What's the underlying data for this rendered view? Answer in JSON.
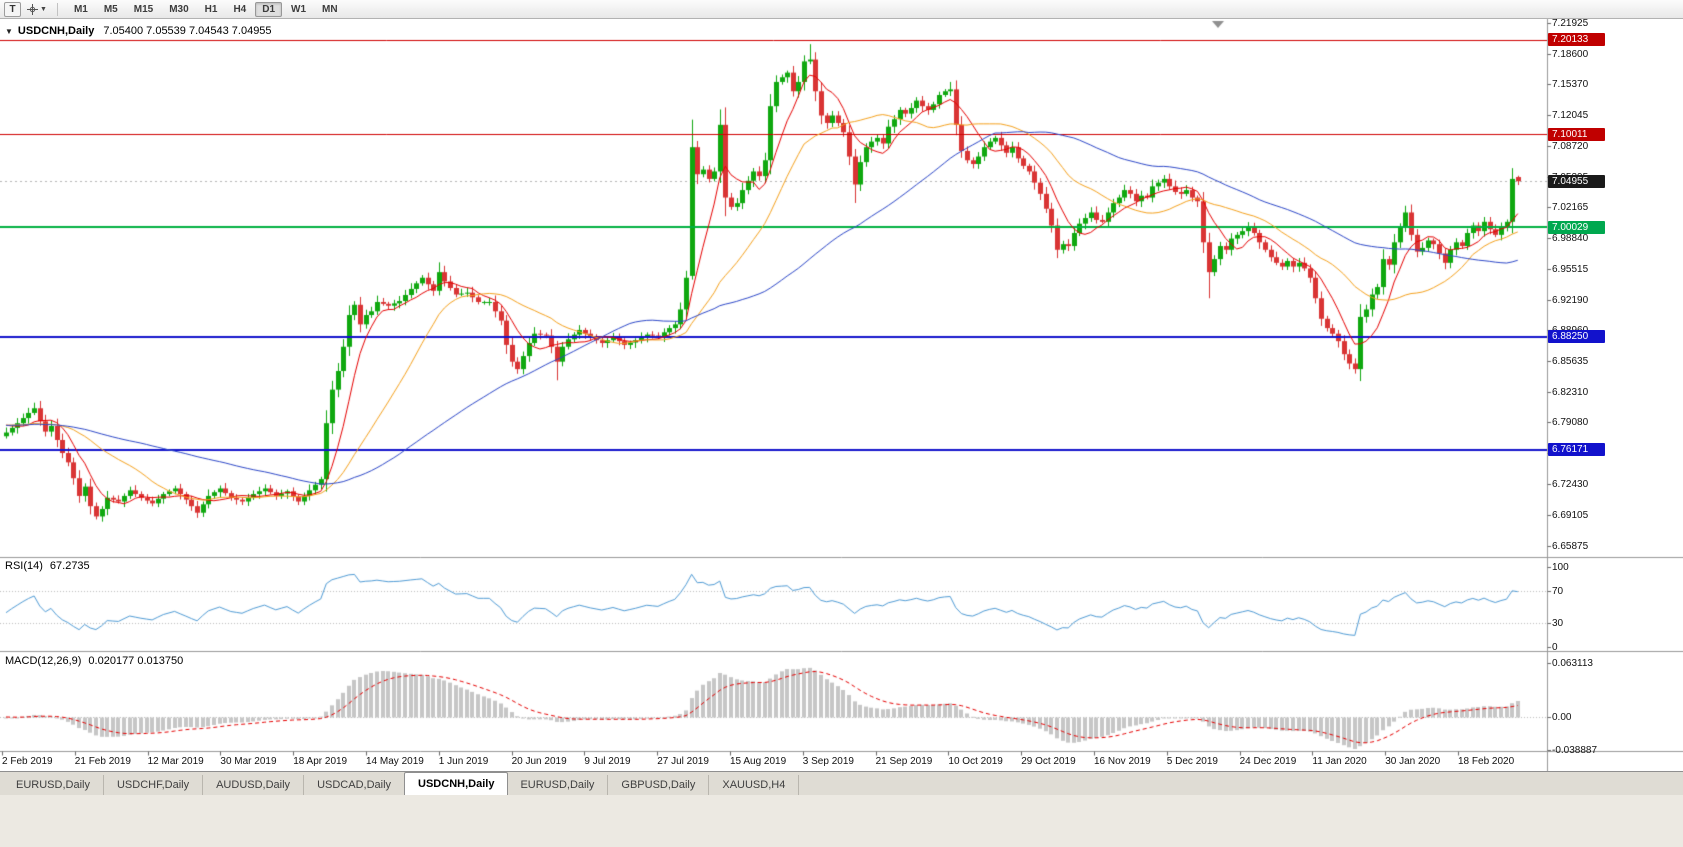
{
  "toolbar": {
    "template_button": "T",
    "timeframes": [
      "M1",
      "M5",
      "M15",
      "M30",
      "H1",
      "H4",
      "D1",
      "W1",
      "MN"
    ],
    "active_timeframe": "D1"
  },
  "chart_header": {
    "symbol": "USDCNH,Daily",
    "ohlc": "7.05400 7.05539 7.04543 7.04955"
  },
  "indicators": {
    "rsi": {
      "label": "RSI(14)",
      "value": "67.2735",
      "axis": [
        "100",
        "70",
        "30",
        "0"
      ]
    },
    "macd": {
      "label": "MACD(12,26,9)",
      "value": "0.020177 0.013750",
      "axis": [
        "0.063113",
        "0.00",
        "-0.038887"
      ]
    }
  },
  "price_axis": {
    "labels": [
      "7.21925",
      "7.18600",
      "7.15370",
      "7.12045",
      "7.08720",
      "7.05395",
      "7.02165",
      "6.98840",
      "6.95515",
      "6.92190",
      "6.88960",
      "6.85635",
      "6.82310",
      "6.79080",
      "6.75755",
      "6.72430",
      "6.69105",
      "6.65875"
    ],
    "badges": [
      {
        "text": "7.20133",
        "color": "#c00000",
        "price": 7.20133,
        "kind": "resistance-level"
      },
      {
        "text": "7.10011",
        "color": "#c00000",
        "price": 7.10011,
        "kind": "resistance-level"
      },
      {
        "text": "7.04955",
        "color": "#1a1a1a",
        "price": 7.04955,
        "kind": "current-bid"
      },
      {
        "text": "7.00029",
        "color": "#00a84f",
        "price": 7.00029,
        "kind": "support-level"
      },
      {
        "text": "6.88250",
        "color": "#1212cc",
        "price": 6.8825,
        "kind": "support-level"
      },
      {
        "text": "6.76171",
        "color": "#1212cc",
        "price": 6.76171,
        "kind": "support-level"
      }
    ]
  },
  "time_axis": {
    "labels": [
      "2 Feb 2019",
      "21 Feb 2019",
      "12 Mar 2019",
      "30 Mar 2019",
      "18 Apr 2019",
      "14 May 2019",
      "1 Jun 2019",
      "20 Jun 2019",
      "9 Jul 2019",
      "27 Jul 2019",
      "15 Aug 2019",
      "3 Sep 2019",
      "21 Sep 2019",
      "10 Oct 2019",
      "29 Oct 2019",
      "16 Nov 2019",
      "5 Dec 2019",
      "24 Dec 2019",
      "11 Jan 2020",
      "30 Jan 2020",
      "18 Feb 2020"
    ]
  },
  "tabs": {
    "active_index": 4,
    "items": [
      {
        "label": "EURUSD,Daily"
      },
      {
        "label": "USDCHF,Daily"
      },
      {
        "label": "AUDUSD,Daily"
      },
      {
        "label": "USDCAD,Daily"
      },
      {
        "label": "USDCNH,Daily"
      },
      {
        "label": "EURUSD,Daily"
      },
      {
        "label": "GBPUSD,Daily"
      },
      {
        "label": "XAUUSD,H4"
      }
    ]
  },
  "chart_data": {
    "type": "candlestick",
    "symbol": "USDCNH",
    "timeframe": "Daily",
    "visible_bars": 270,
    "price_scale": {
      "top": 7.2235,
      "bottom": 6.6465
    },
    "bull_color": "#0fa80f",
    "bear_color": "#d93434",
    "bid_line": {
      "price": 7.04955,
      "color": "#b5b5b5"
    },
    "hlines": [
      {
        "price": 7.20133,
        "color": "#d00000",
        "width": 1
      },
      {
        "price": 7.10011,
        "color": "#d00000",
        "width": 1
      },
      {
        "price": 7.00029,
        "color": "#00b140",
        "width": 2
      },
      {
        "price": 6.8825,
        "color": "#1212cc",
        "width": 2
      },
      {
        "price": 6.76171,
        "color": "#1212cc",
        "width": 2
      }
    ],
    "moving_averages": [
      {
        "period": 7,
        "color": "#e60000"
      },
      {
        "period": 21,
        "color": "#f5a11c"
      },
      {
        "period": 55,
        "color": "#2b46c8"
      }
    ],
    "rsi": {
      "period": 14,
      "color": "#4f9bd5",
      "levels": [
        70,
        30
      ],
      "scale": [
        0,
        100
      ]
    },
    "macd": {
      "fast": 12,
      "slow": 26,
      "signal": 9,
      "histogram_color": "#c6c6c6",
      "signal_color": "#e60000",
      "scale": [
        -0.038887,
        0.063113
      ]
    },
    "close_anchors": [
      [
        0,
        6.78
      ],
      [
        2,
        6.79
      ],
      [
        4,
        6.801
      ],
      [
        5,
        6.806
      ],
      [
        6,
        6.792
      ],
      [
        7,
        6.781
      ],
      [
        8,
        6.787
      ],
      [
        9,
        6.772
      ],
      [
        10,
        6.758
      ],
      [
        11,
        6.748
      ],
      [
        12,
        6.731
      ],
      [
        13,
        6.712
      ],
      [
        14,
        6.722
      ],
      [
        15,
        6.701
      ],
      [
        16,
        6.69
      ],
      [
        17,
        6.698
      ],
      [
        18,
        6.71
      ],
      [
        20,
        6.706
      ],
      [
        22,
        6.718
      ],
      [
        24,
        6.71
      ],
      [
        26,
        6.704
      ],
      [
        28,
        6.714
      ],
      [
        30,
        6.72
      ],
      [
        32,
        6.708
      ],
      [
        34,
        6.694
      ],
      [
        36,
        6.712
      ],
      [
        38,
        6.72
      ],
      [
        40,
        6.71
      ],
      [
        42,
        6.706
      ],
      [
        44,
        6.714
      ],
      [
        46,
        6.72
      ],
      [
        48,
        6.712
      ],
      [
        50,
        6.717
      ],
      [
        52,
        6.706
      ],
      [
        54,
        6.718
      ],
      [
        56,
        6.73
      ],
      [
        57,
        6.79
      ],
      [
        58,
        6.826
      ],
      [
        59,
        6.846
      ],
      [
        60,
        6.872
      ],
      [
        61,
        6.906
      ],
      [
        62,
        6.917
      ],
      [
        63,
        6.896
      ],
      [
        64,
        6.906
      ],
      [
        65,
        6.91
      ],
      [
        66,
        6.92
      ],
      [
        68,
        6.916
      ],
      [
        70,
        6.921
      ],
      [
        72,
        6.934
      ],
      [
        74,
        6.946
      ],
      [
        76,
        6.932
      ],
      [
        77,
        6.952
      ],
      [
        78,
        6.942
      ],
      [
        80,
        6.928
      ],
      [
        82,
        6.93
      ],
      [
        84,
        6.92
      ],
      [
        86,
        6.92
      ],
      [
        88,
        6.9
      ],
      [
        89,
        6.874
      ],
      [
        90,
        6.856
      ],
      [
        91,
        6.848
      ],
      [
        92,
        6.862
      ],
      [
        93,
        6.876
      ],
      [
        94,
        6.886
      ],
      [
        96,
        6.884
      ],
      [
        97,
        6.872
      ],
      [
        98,
        6.856
      ],
      [
        99,
        6.872
      ],
      [
        100,
        6.88
      ],
      [
        102,
        6.89
      ],
      [
        104,
        6.882
      ],
      [
        106,
        6.876
      ],
      [
        108,
        6.882
      ],
      [
        110,
        6.874
      ],
      [
        112,
        6.879
      ],
      [
        114,
        6.885
      ],
      [
        116,
        6.883
      ],
      [
        118,
        6.892
      ],
      [
        119,
        6.896
      ],
      [
        120,
        6.912
      ],
      [
        121,
        6.946
      ],
      [
        122,
        7.086
      ],
      [
        123,
        7.057
      ],
      [
        124,
        7.062
      ],
      [
        125,
        7.052
      ],
      [
        126,
        7.06
      ],
      [
        127,
        7.11
      ],
      [
        128,
        7.032
      ],
      [
        129,
        7.022
      ],
      [
        130,
        7.026
      ],
      [
        131,
        7.04
      ],
      [
        132,
        7.05
      ],
      [
        133,
        7.06
      ],
      [
        134,
        7.055
      ],
      [
        135,
        7.072
      ],
      [
        136,
        7.13
      ],
      [
        137,
        7.156
      ],
      [
        138,
        7.161
      ],
      [
        139,
        7.166
      ],
      [
        140,
        7.146
      ],
      [
        141,
        7.156
      ],
      [
        142,
        7.178
      ],
      [
        143,
        7.18
      ],
      [
        144,
        7.146
      ],
      [
        145,
        7.12
      ],
      [
        146,
        7.112
      ],
      [
        147,
        7.12
      ],
      [
        148,
        7.112
      ],
      [
        149,
        7.102
      ],
      [
        150,
        7.076
      ],
      [
        151,
        7.046
      ],
      [
        152,
        7.07
      ],
      [
        153,
        7.086
      ],
      [
        154,
        7.092
      ],
      [
        155,
        7.096
      ],
      [
        156,
        7.09
      ],
      [
        157,
        7.108
      ],
      [
        158,
        7.116
      ],
      [
        159,
        7.126
      ],
      [
        160,
        7.122
      ],
      [
        161,
        7.128
      ],
      [
        162,
        7.136
      ],
      [
        163,
        7.13
      ],
      [
        164,
        7.126
      ],
      [
        165,
        7.132
      ],
      [
        166,
        7.142
      ],
      [
        167,
        7.146
      ],
      [
        168,
        7.148
      ],
      [
        169,
        7.11
      ],
      [
        170,
        7.082
      ],
      [
        171,
        7.072
      ],
      [
        172,
        7.068
      ],
      [
        173,
        7.076
      ],
      [
        174,
        7.086
      ],
      [
        175,
        7.092
      ],
      [
        176,
        7.096
      ],
      [
        177,
        7.088
      ],
      [
        178,
        7.08
      ],
      [
        179,
        7.086
      ],
      [
        180,
        7.074
      ],
      [
        181,
        7.066
      ],
      [
        182,
        7.06
      ],
      [
        183,
        7.048
      ],
      [
        184,
        7.036
      ],
      [
        185,
        7.02
      ],
      [
        186,
        7.002
      ],
      [
        187,
        6.976
      ],
      [
        188,
        6.982
      ],
      [
        189,
        6.98
      ],
      [
        190,
        6.994
      ],
      [
        191,
        7.004
      ],
      [
        192,
        7.01
      ],
      [
        193,
        7.016
      ],
      [
        194,
        7.008
      ],
      [
        195,
        7.006
      ],
      [
        196,
        7.016
      ],
      [
        197,
        7.026
      ],
      [
        198,
        7.032
      ],
      [
        199,
        7.04
      ],
      [
        200,
        7.036
      ],
      [
        201,
        7.028
      ],
      [
        202,
        7.034
      ],
      [
        203,
        7.032
      ],
      [
        204,
        7.044
      ],
      [
        205,
        7.048
      ],
      [
        206,
        7.052
      ],
      [
        207,
        7.044
      ],
      [
        208,
        7.038
      ],
      [
        209,
        7.036
      ],
      [
        210,
        7.04
      ],
      [
        211,
        7.032
      ],
      [
        212,
        7.028
      ],
      [
        213,
        6.984
      ],
      [
        214,
        6.952
      ],
      [
        215,
        6.966
      ],
      [
        216,
        6.98
      ],
      [
        217,
        6.976
      ],
      [
        218,
        6.988
      ],
      [
        219,
        6.992
      ],
      [
        220,
        6.996
      ],
      [
        221,
        7.0
      ],
      [
        222,
        6.994
      ],
      [
        223,
        6.984
      ],
      [
        224,
        6.976
      ],
      [
        225,
        6.968
      ],
      [
        226,
        6.962
      ],
      [
        227,
        6.958
      ],
      [
        228,
        6.964
      ],
      [
        229,
        6.958
      ],
      [
        230,
        6.962
      ],
      [
        231,
        6.956
      ],
      [
        232,
        6.946
      ],
      [
        233,
        6.924
      ],
      [
        234,
        6.902
      ],
      [
        235,
        6.892
      ],
      [
        236,
        6.886
      ],
      [
        237,
        6.878
      ],
      [
        238,
        6.864
      ],
      [
        239,
        6.854
      ],
      [
        240,
        6.848
      ],
      [
        241,
        6.904
      ],
      [
        242,
        6.912
      ],
      [
        243,
        6.928
      ],
      [
        244,
        6.936
      ],
      [
        245,
        6.966
      ],
      [
        246,
        6.96
      ],
      [
        247,
        6.984
      ],
      [
        248,
        7.0
      ],
      [
        249,
        7.016
      ],
      [
        250,
        6.992
      ],
      [
        251,
        6.974
      ],
      [
        252,
        6.978
      ],
      [
        253,
        6.986
      ],
      [
        254,
        6.982
      ],
      [
        255,
        6.972
      ],
      [
        256,
        6.962
      ],
      [
        257,
        6.976
      ],
      [
        258,
        6.984
      ],
      [
        259,
        6.98
      ],
      [
        260,
        6.994
      ],
      [
        261,
        7.002
      ],
      [
        262,
        6.996
      ],
      [
        263,
        7.006
      ],
      [
        264,
        6.998
      ],
      [
        265,
        6.992
      ],
      [
        266,
        7.0
      ],
      [
        267,
        7.006
      ],
      [
        268,
        7.052
      ],
      [
        269,
        7.04955
      ]
    ],
    "wick_overrides": {
      "5": {
        "h": 6.812
      },
      "16": {
        "l": 6.6868
      },
      "34": {
        "l": 6.6885
      },
      "77": {
        "h": 6.9625
      },
      "91": {
        "l": 6.843
      },
      "98": {
        "l": 6.836
      },
      "122": {
        "o": 6.948,
        "l": 6.944
      },
      "127": {
        "h": 7.1265
      },
      "128": {
        "l": 7.012
      },
      "143": {
        "h": 7.1965
      },
      "151": {
        "l": 7.0262
      },
      "168": {
        "h": 7.156
      },
      "214": {
        "l": 6.924
      },
      "240": {
        "l": 6.8432
      },
      "249": {
        "h": 7.0232
      },
      "269": {
        "o": 7.054,
        "h": 7.05539,
        "l": 7.04543,
        "c": 7.04955
      }
    }
  }
}
